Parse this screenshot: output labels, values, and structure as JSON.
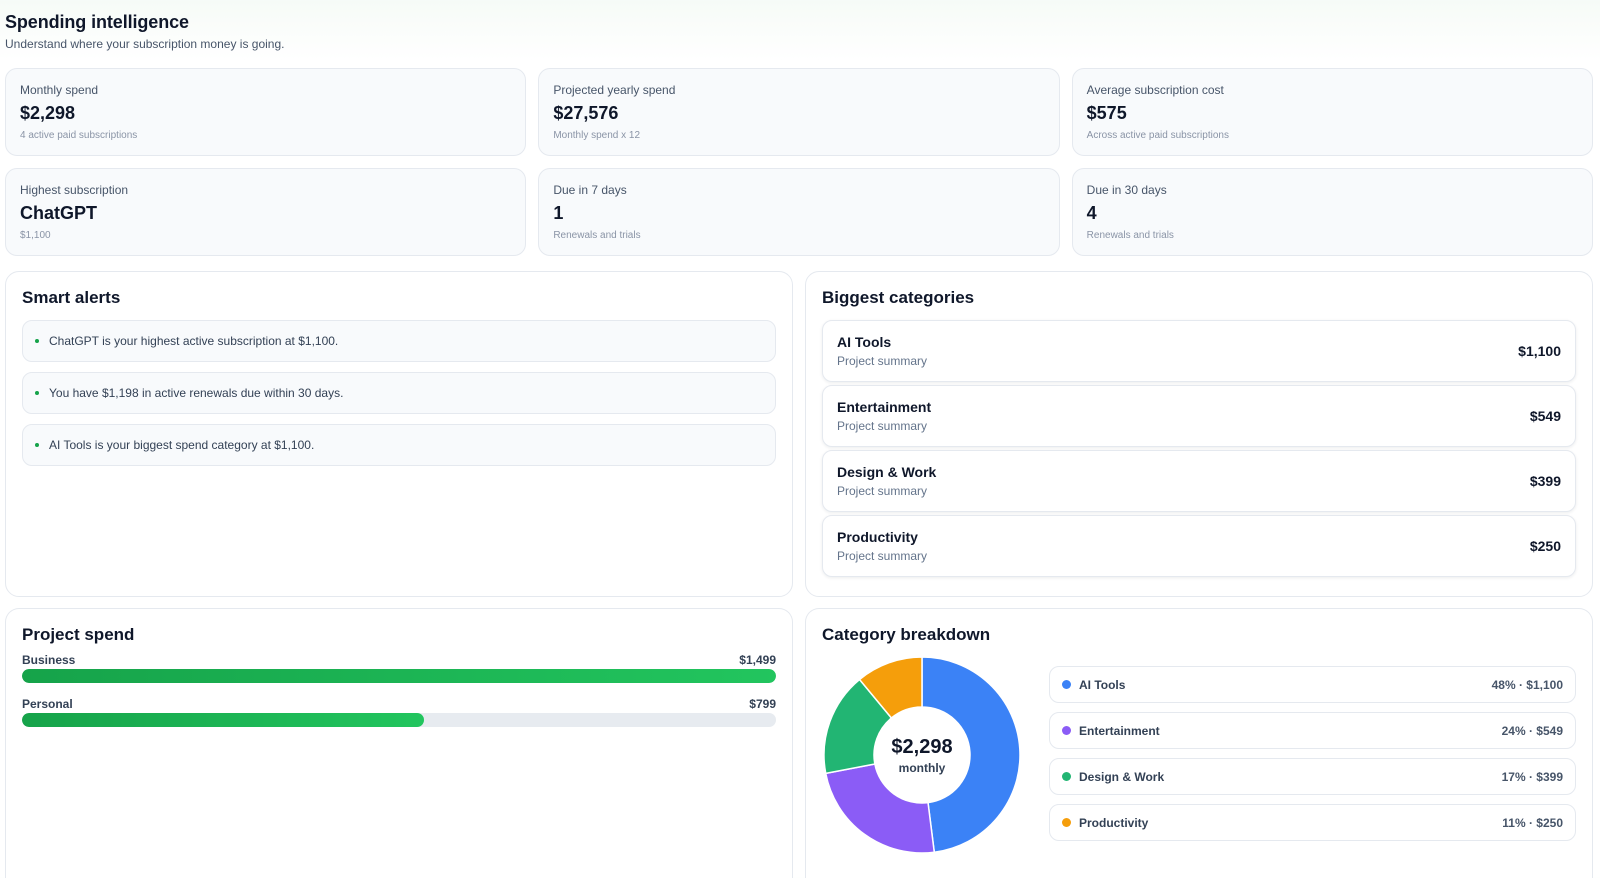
{
  "header": {
    "title": "Spending intelligence",
    "subtitle": "Understand where your subscription money is going."
  },
  "stats": [
    {
      "label": "Monthly spend",
      "value": "$2,298",
      "sub": "4 active paid subscriptions"
    },
    {
      "label": "Projected yearly spend",
      "value": "$27,576",
      "sub": "Monthly spend x 12"
    },
    {
      "label": "Average subscription cost",
      "value": "$575",
      "sub": "Across active paid subscriptions"
    },
    {
      "label": "Highest subscription",
      "value": "ChatGPT",
      "sub": "$1,100"
    },
    {
      "label": "Due in 7 days",
      "value": "1",
      "sub": "Renewals and trials"
    },
    {
      "label": "Due in 30 days",
      "value": "4",
      "sub": "Renewals and trials"
    }
  ],
  "alerts": {
    "title": "Smart alerts",
    "items": [
      "ChatGPT is your highest active subscription at $1,100.",
      "You have $1,198 in active renewals due within 30 days.",
      "AI Tools is your biggest spend category at $1,100."
    ]
  },
  "categories": {
    "title": "Biggest categories",
    "items": [
      {
        "name": "AI Tools",
        "desc": "Project summary",
        "amount": "$1,100"
      },
      {
        "name": "Entertainment",
        "desc": "Project summary",
        "amount": "$549"
      },
      {
        "name": "Design & Work",
        "desc": "Project summary",
        "amount": "$399"
      },
      {
        "name": "Productivity",
        "desc": "Project summary",
        "amount": "$250"
      }
    ]
  },
  "project": {
    "title": "Project spend",
    "items": [
      {
        "name": "Business",
        "amount": "$1,499",
        "fraction": 1.0
      },
      {
        "name": "Personal",
        "amount": "$799",
        "fraction": 0.533
      }
    ]
  },
  "breakdown": {
    "title": "Category breakdown",
    "center_value": "$2,298",
    "center_label": "monthly",
    "items": [
      {
        "name": "AI Tools",
        "detail": "48% · $1,100",
        "percent": 48,
        "color": "#3b82f6"
      },
      {
        "name": "Entertainment",
        "detail": "24% · $549",
        "percent": 24,
        "color": "#8b5cf6"
      },
      {
        "name": "Design & Work",
        "detail": "17% · $399",
        "percent": 17,
        "color": "#22b573"
      },
      {
        "name": "Productivity",
        "detail": "11% · $250",
        "percent": 11,
        "color": "#f59e0b"
      }
    ]
  }
}
